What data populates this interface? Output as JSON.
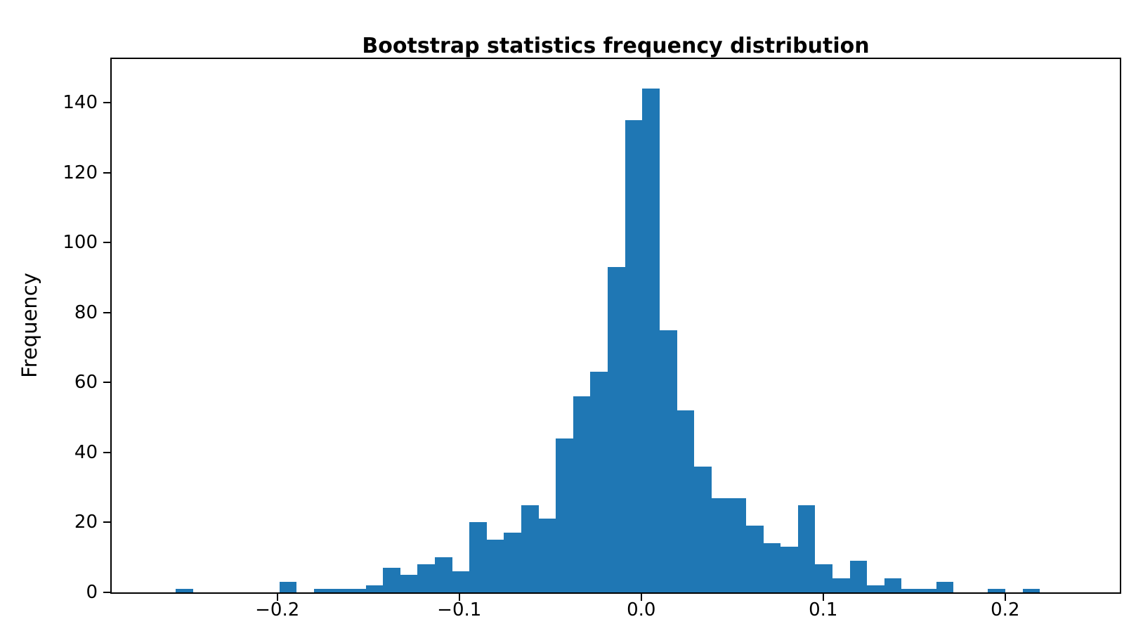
{
  "title": "Bootstrap statistics frequency distribution",
  "chart_data": {
    "type": "bar",
    "subtype": "histogram",
    "title": "Bootstrap statistics frequency distribution",
    "xlabel": "",
    "ylabel": "Frequency",
    "bar_color": "#1f77b4",
    "background_color": "#ffffff",
    "spine_color": "#000000",
    "grid": false,
    "legend": null,
    "bin_start": -0.2559,
    "bin_width": 0.0095,
    "total_samples": 1000,
    "counts": [
      1,
      0,
      0,
      0,
      0,
      0,
      3,
      0,
      1,
      1,
      1,
      2,
      7,
      5,
      8,
      10,
      6,
      20,
      15,
      17,
      25,
      21,
      44,
      56,
      63,
      93,
      135,
      144,
      75,
      52,
      36,
      27,
      27,
      19,
      14,
      13,
      25,
      8,
      4,
      9,
      2,
      4,
      1,
      1,
      3,
      0,
      0,
      1,
      0,
      1
    ],
    "xlim": [
      -0.291,
      0.263
    ],
    "ylim": [
      0,
      152.5
    ],
    "x_ticks": [
      -0.2,
      -0.1,
      0.0,
      0.1,
      0.2
    ],
    "x_tick_labels": [
      "−0.2",
      "−0.1",
      "0.0",
      "0.1",
      "0.2"
    ],
    "y_ticks": [
      0,
      20,
      40,
      60,
      80,
      100,
      120,
      140
    ],
    "y_tick_labels": [
      "0",
      "20",
      "40",
      "60",
      "80",
      "100",
      "120",
      "140"
    ]
  }
}
